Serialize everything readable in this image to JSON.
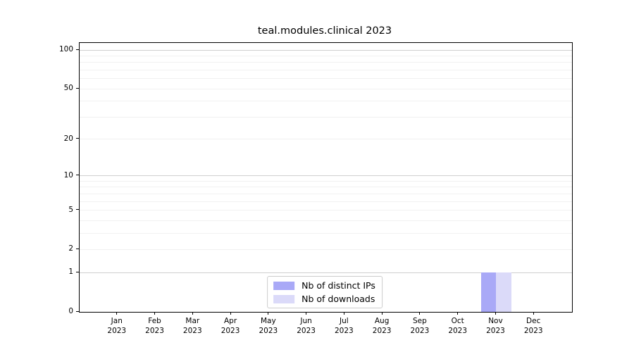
{
  "chart_data": {
    "type": "bar",
    "title": "teal.modules.clinical 2023",
    "xlabel": "",
    "ylabel": "",
    "categories": [
      "Jan 2023",
      "Feb 2023",
      "Mar 2023",
      "Apr 2023",
      "May 2023",
      "Jun 2023",
      "Jul 2023",
      "Aug 2023",
      "Sep 2023",
      "Oct 2023",
      "Nov 2023",
      "Dec 2023"
    ],
    "series": [
      {
        "name": "Nb of distinct IPs",
        "color": "#a9a9f7",
        "values": [
          0,
          0,
          0,
          0,
          0,
          0,
          0,
          0,
          0,
          0,
          1,
          0
        ]
      },
      {
        "name": "Nb of downloads",
        "color": "#dbdaf9",
        "values": [
          0,
          0,
          0,
          0,
          0,
          0,
          0,
          0,
          0,
          0,
          1,
          0
        ]
      }
    ],
    "yscale": "log1p",
    "ylim": [
      0,
      113
    ],
    "yticks": [
      0,
      1,
      2,
      5,
      10,
      20,
      50,
      100
    ],
    "grid": {
      "major_ticks": [
        1,
        10,
        100
      ],
      "minor_ticks": [
        2,
        3,
        4,
        5,
        6,
        7,
        8,
        9,
        20,
        30,
        40,
        50,
        60,
        70,
        80,
        90
      ],
      "major_color": "#cfcfcf",
      "minor_color": "#f1f1f1"
    },
    "legend": {
      "position": "lower center",
      "border_color": "#cccccc"
    },
    "colors": {
      "axis": "#000000",
      "text": "#000000",
      "background": "#ffffff"
    }
  }
}
